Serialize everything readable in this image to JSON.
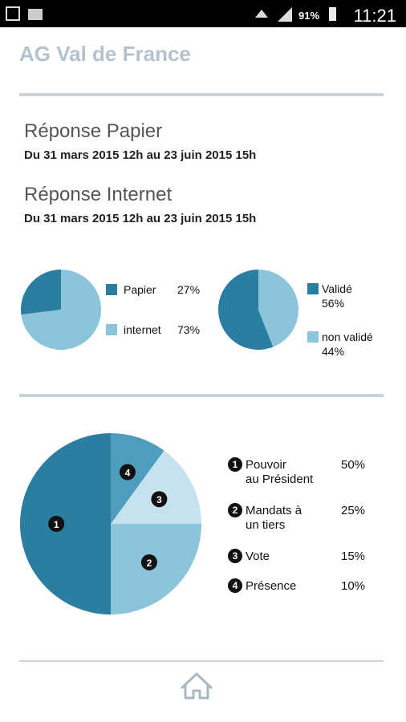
{
  "status_bar": {
    "battery": "91%",
    "time": "11:21"
  },
  "header": {
    "title": "AG Val de France"
  },
  "sections": [
    {
      "title": "Réponse Papier",
      "dates": "Du 31 mars 2015 12h au 23 juin 2015 15h"
    },
    {
      "title": "Réponse Internet",
      "dates": "Du 31 mars 2015 12h au 23 juin 2015 15h"
    }
  ],
  "chart_data": [
    {
      "type": "pie",
      "categories": [
        "Papier",
        "internet"
      ],
      "values": [
        27,
        73
      ],
      "value_labels": [
        "27%",
        "73%"
      ],
      "colors": [
        "#2a7fa0",
        "#8cc4dc"
      ]
    },
    {
      "type": "pie",
      "categories": [
        "Validé",
        "non validé"
      ],
      "values": [
        56,
        44
      ],
      "value_labels": [
        "56%",
        "44%"
      ],
      "colors": [
        "#2a7fa0",
        "#8cc4dc"
      ]
    },
    {
      "type": "pie",
      "categories": [
        "Pouvoir\nau Président",
        "Mandats à\nun tiers",
        "Vote",
        "Présence"
      ],
      "values": [
        50,
        25,
        15,
        10
      ],
      "value_labels": [
        "50%",
        "25%",
        "15%",
        "10%"
      ],
      "markers": [
        "1",
        "2",
        "3",
        "4"
      ],
      "colors": [
        "#2a7fa0",
        "#8cc4dc",
        "#c5e2ee",
        "#4f9dbd"
      ]
    }
  ]
}
